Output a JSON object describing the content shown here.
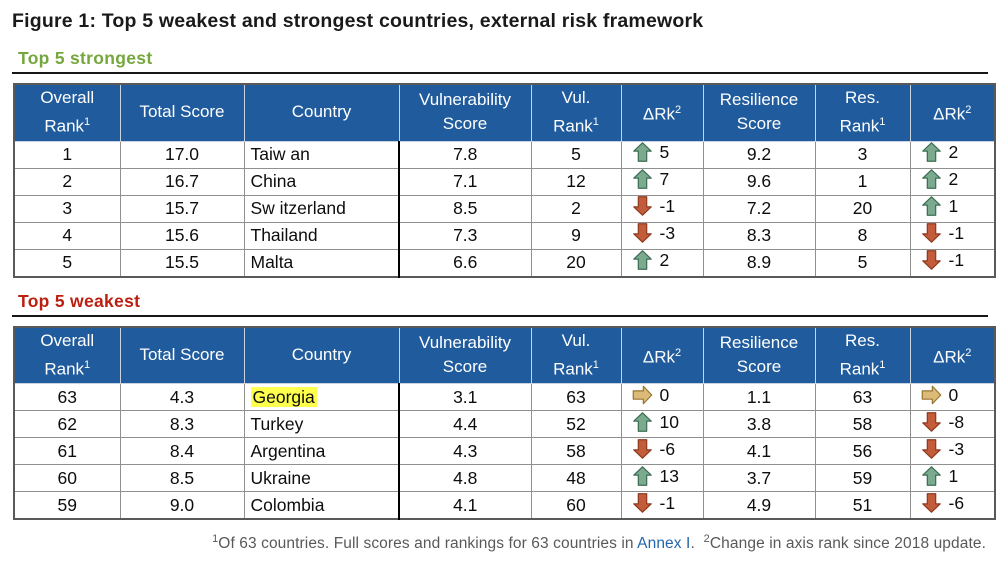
{
  "figure_title": "Figure 1: Top 5 weakest and strongest countries, external risk framework",
  "sections": [
    {
      "label": "Top 5 strongest",
      "label_color": "#76A73E"
    },
    {
      "label": "Top 5 weakest",
      "label_color": "#BC1F12"
    }
  ],
  "columns": [
    {
      "lines": [
        "Overall",
        "Rank"
      ],
      "sup": "1"
    },
    {
      "lines": [
        "Total Score"
      ],
      "sup": null
    },
    {
      "lines": [
        "Country"
      ],
      "sup": null
    },
    {
      "lines": [
        "Vulnerability",
        "Score"
      ],
      "sup": null
    },
    {
      "lines": [
        "Vul.",
        "Rank"
      ],
      "sup": "1"
    },
    {
      "lines": [
        "ΔRk"
      ],
      "sup": "2"
    },
    {
      "lines": [
        "Resilience",
        "Score"
      ],
      "sup": null
    },
    {
      "lines": [
        "Res.",
        "Rank"
      ],
      "sup": "1"
    },
    {
      "lines": [
        "ΔRk"
      ],
      "sup": "2"
    }
  ],
  "tables": [
    {
      "name": "strongest",
      "rows": [
        {
          "overall_rank": "1",
          "total_score": "17.0",
          "country": "Taiw an",
          "highlight": false,
          "vul_score": "7.8",
          "vul_rank": "5",
          "vul_delta": {
            "dir": "up",
            "value": "5"
          },
          "res_score": "9.2",
          "res_rank": "3",
          "res_delta": {
            "dir": "up",
            "value": "2"
          }
        },
        {
          "overall_rank": "2",
          "total_score": "16.7",
          "country": "China",
          "highlight": false,
          "vul_score": "7.1",
          "vul_rank": "12",
          "vul_delta": {
            "dir": "up",
            "value": "7"
          },
          "res_score": "9.6",
          "res_rank": "1",
          "res_delta": {
            "dir": "up",
            "value": "2"
          }
        },
        {
          "overall_rank": "3",
          "total_score": "15.7",
          "country": "Sw itzerland",
          "highlight": false,
          "vul_score": "8.5",
          "vul_rank": "2",
          "vul_delta": {
            "dir": "down",
            "value": "-1"
          },
          "res_score": "7.2",
          "res_rank": "20",
          "res_delta": {
            "dir": "up",
            "value": "1"
          }
        },
        {
          "overall_rank": "4",
          "total_score": "15.6",
          "country": "Thailand",
          "highlight": false,
          "vul_score": "7.3",
          "vul_rank": "9",
          "vul_delta": {
            "dir": "down",
            "value": "-3"
          },
          "res_score": "8.3",
          "res_rank": "8",
          "res_delta": {
            "dir": "down",
            "value": "-1"
          }
        },
        {
          "overall_rank": "5",
          "total_score": "15.5",
          "country": "Malta",
          "highlight": false,
          "vul_score": "6.6",
          "vul_rank": "20",
          "vul_delta": {
            "dir": "up",
            "value": "2"
          },
          "res_score": "8.9",
          "res_rank": "5",
          "res_delta": {
            "dir": "down",
            "value": "-1"
          }
        }
      ]
    },
    {
      "name": "weakest",
      "rows": [
        {
          "overall_rank": "63",
          "total_score": "4.3",
          "country": "Georgia",
          "highlight": true,
          "vul_score": "3.1",
          "vul_rank": "63",
          "vul_delta": {
            "dir": "right",
            "value": "0"
          },
          "res_score": "1.1",
          "res_rank": "63",
          "res_delta": {
            "dir": "right",
            "value": "0"
          }
        },
        {
          "overall_rank": "62",
          "total_score": "8.3",
          "country": "Turkey",
          "highlight": false,
          "vul_score": "4.4",
          "vul_rank": "52",
          "vul_delta": {
            "dir": "up",
            "value": "10"
          },
          "res_score": "3.8",
          "res_rank": "58",
          "res_delta": {
            "dir": "down",
            "value": "-8"
          }
        },
        {
          "overall_rank": "61",
          "total_score": "8.4",
          "country": "Argentina",
          "highlight": false,
          "vul_score": "4.3",
          "vul_rank": "58",
          "vul_delta": {
            "dir": "down",
            "value": "-6"
          },
          "res_score": "4.1",
          "res_rank": "56",
          "res_delta": {
            "dir": "down",
            "value": "-3"
          }
        },
        {
          "overall_rank": "60",
          "total_score": "8.5",
          "country": "Ukraine",
          "highlight": false,
          "vul_score": "4.8",
          "vul_rank": "48",
          "vul_delta": {
            "dir": "up",
            "value": "13"
          },
          "res_score": "3.7",
          "res_rank": "59",
          "res_delta": {
            "dir": "up",
            "value": "1"
          }
        },
        {
          "overall_rank": "59",
          "total_score": "9.0",
          "country": "Colombia",
          "highlight": false,
          "vul_score": "4.1",
          "vul_rank": "60",
          "vul_delta": {
            "dir": "down",
            "value": "-1"
          },
          "res_score": "4.9",
          "res_rank": "51",
          "res_delta": {
            "dir": "down",
            "value": "-6"
          }
        }
      ]
    }
  ],
  "footnote": {
    "sup1": "1",
    "text1": "Of 63 countries. Full scores and rankings for 63 countries in ",
    "link_label": "Annex I",
    "text2": ".  ",
    "sup2": "2",
    "text3": "Change in axis rank since 2018 update."
  },
  "colors": {
    "header_bg": "#1F5B9D",
    "highlight": "#FFFF4D",
    "link": "#2565AE",
    "footnote_text": "#595959",
    "arrows": {
      "up": {
        "fill": "#7BAA8E",
        "stroke": "#3D6E54"
      },
      "down": {
        "fill": "#C35C3B",
        "stroke": "#8F3A1E"
      },
      "right": {
        "fill": "#DCBA78",
        "stroke": "#97762F"
      }
    }
  }
}
